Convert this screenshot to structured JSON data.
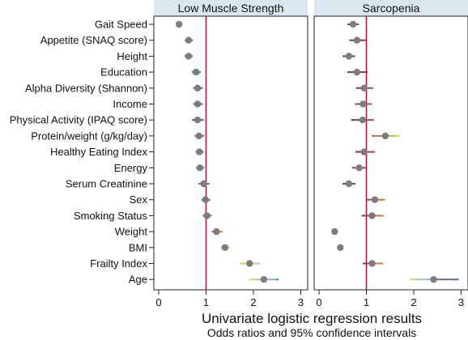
{
  "chart_data": {
    "type": "forest",
    "xlabel": "Univariate logistic regression results",
    "xlabel_sub": "Odds ratios and 95% confidence intervals",
    "reference_line": 1,
    "xlim": [
      0,
      3
    ],
    "xticks": [
      0,
      1,
      2,
      3
    ],
    "categories": [
      "Gait Speed",
      "Appetite (SNAQ score)",
      "Height",
      "Education",
      "Alpha Diversity (Shannon)",
      "Income",
      "Physical Activity (IPAQ score)",
      "Protein/weight (g/kg/day)",
      "Healthy Eating Index",
      "Energy",
      "Serum Creatinine",
      "Sex",
      "Smoking Status",
      "Weight",
      "BMI",
      "Frailty Index",
      "Age"
    ],
    "panels": [
      {
        "title": "Low Muscle Strength",
        "or": [
          0.43,
          0.63,
          0.63,
          0.79,
          0.82,
          0.82,
          0.82,
          0.85,
          0.86,
          0.87,
          0.95,
          0.99,
          1.02,
          1.22,
          1.4,
          1.92,
          2.22
        ],
        "low": [
          0.37,
          0.55,
          0.55,
          0.7,
          0.73,
          0.73,
          0.7,
          0.76,
          0.78,
          0.79,
          0.84,
          0.9,
          0.93,
          1.12,
          1.32,
          1.72,
          1.92
        ],
        "high": [
          0.48,
          0.72,
          0.72,
          0.89,
          0.93,
          0.93,
          0.95,
          0.96,
          0.95,
          0.96,
          1.07,
          1.09,
          1.12,
          1.35,
          1.49,
          2.14,
          2.53
        ]
      },
      {
        "title": "Sarcopenia",
        "or": [
          0.72,
          0.8,
          0.63,
          0.8,
          0.95,
          0.93,
          0.92,
          1.4,
          0.95,
          0.85,
          0.63,
          1.18,
          1.12,
          0.33,
          0.45,
          1.12,
          2.42
        ],
        "low": [
          0.6,
          0.64,
          0.5,
          0.6,
          0.78,
          0.76,
          0.68,
          1.12,
          0.77,
          0.7,
          0.5,
          1.0,
          0.9,
          0.28,
          0.39,
          0.92,
          1.92
        ],
        "high": [
          0.84,
          1.0,
          0.76,
          1.03,
          1.14,
          1.12,
          1.16,
          1.7,
          1.18,
          1.0,
          0.77,
          1.4,
          1.36,
          0.38,
          0.51,
          1.35,
          2.95
        ]
      }
    ],
    "colors": {
      "dot": "#7d7d7d",
      "reference_line": "#9c1d3f",
      "panel_header": "#dbe7ef",
      "ci_palette": [
        "#1b2a4a",
        "#4f2a50",
        "#7a2b44",
        "#a03a3a",
        "#c26f2a",
        "#d9a52e",
        "#e0c63a",
        "#c9d36a",
        "#9ccba0",
        "#8ab2c3",
        "#5c6f8c"
      ]
    }
  }
}
